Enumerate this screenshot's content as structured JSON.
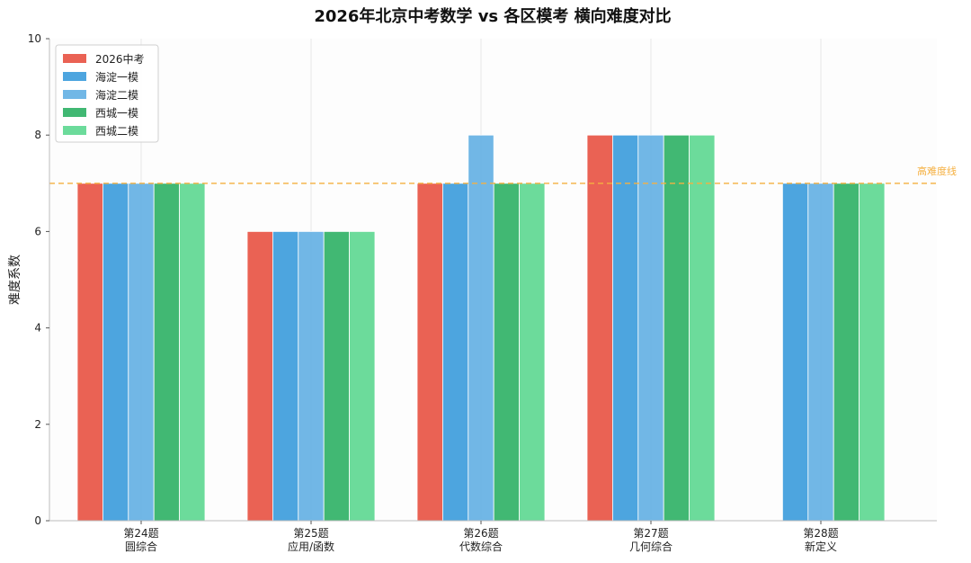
{
  "chart_data": {
    "type": "bar",
    "title": "2026年北京中考数学 vs 各区模考 横向难度对比",
    "xlabel": "",
    "ylabel": "难度系数",
    "ylim": [
      0,
      10
    ],
    "yticks": [
      0,
      2,
      4,
      6,
      8,
      10
    ],
    "grid": "x-only",
    "legend_position": "top-left",
    "categories": [
      [
        "第24题",
        "圆综合"
      ],
      [
        "第25题",
        "应用/函数"
      ],
      [
        "第26题",
        "代数综合"
      ],
      [
        "第27题",
        "几何综合"
      ],
      [
        "第28题",
        "新定义"
      ]
    ],
    "series": [
      {
        "name": "2026中考",
        "color": "#e74c3c",
        "values": [
          7,
          6,
          7,
          8,
          null
        ]
      },
      {
        "name": "海淀一模",
        "color": "#3498db",
        "values": [
          7,
          6,
          7,
          8,
          7
        ]
      },
      {
        "name": "海淀二模",
        "color": "#5dade2",
        "values": [
          7,
          6,
          8,
          8,
          7
        ]
      },
      {
        "name": "西城一模",
        "color": "#27ae60",
        "values": [
          7,
          6,
          7,
          8,
          7
        ]
      },
      {
        "name": "西城二模",
        "color": "#58d68d",
        "values": [
          7,
          6,
          7,
          8,
          7
        ]
      }
    ],
    "reference_line": {
      "value": 7,
      "label": "高难度线",
      "color": "#f5b041",
      "style": "dashed"
    }
  }
}
